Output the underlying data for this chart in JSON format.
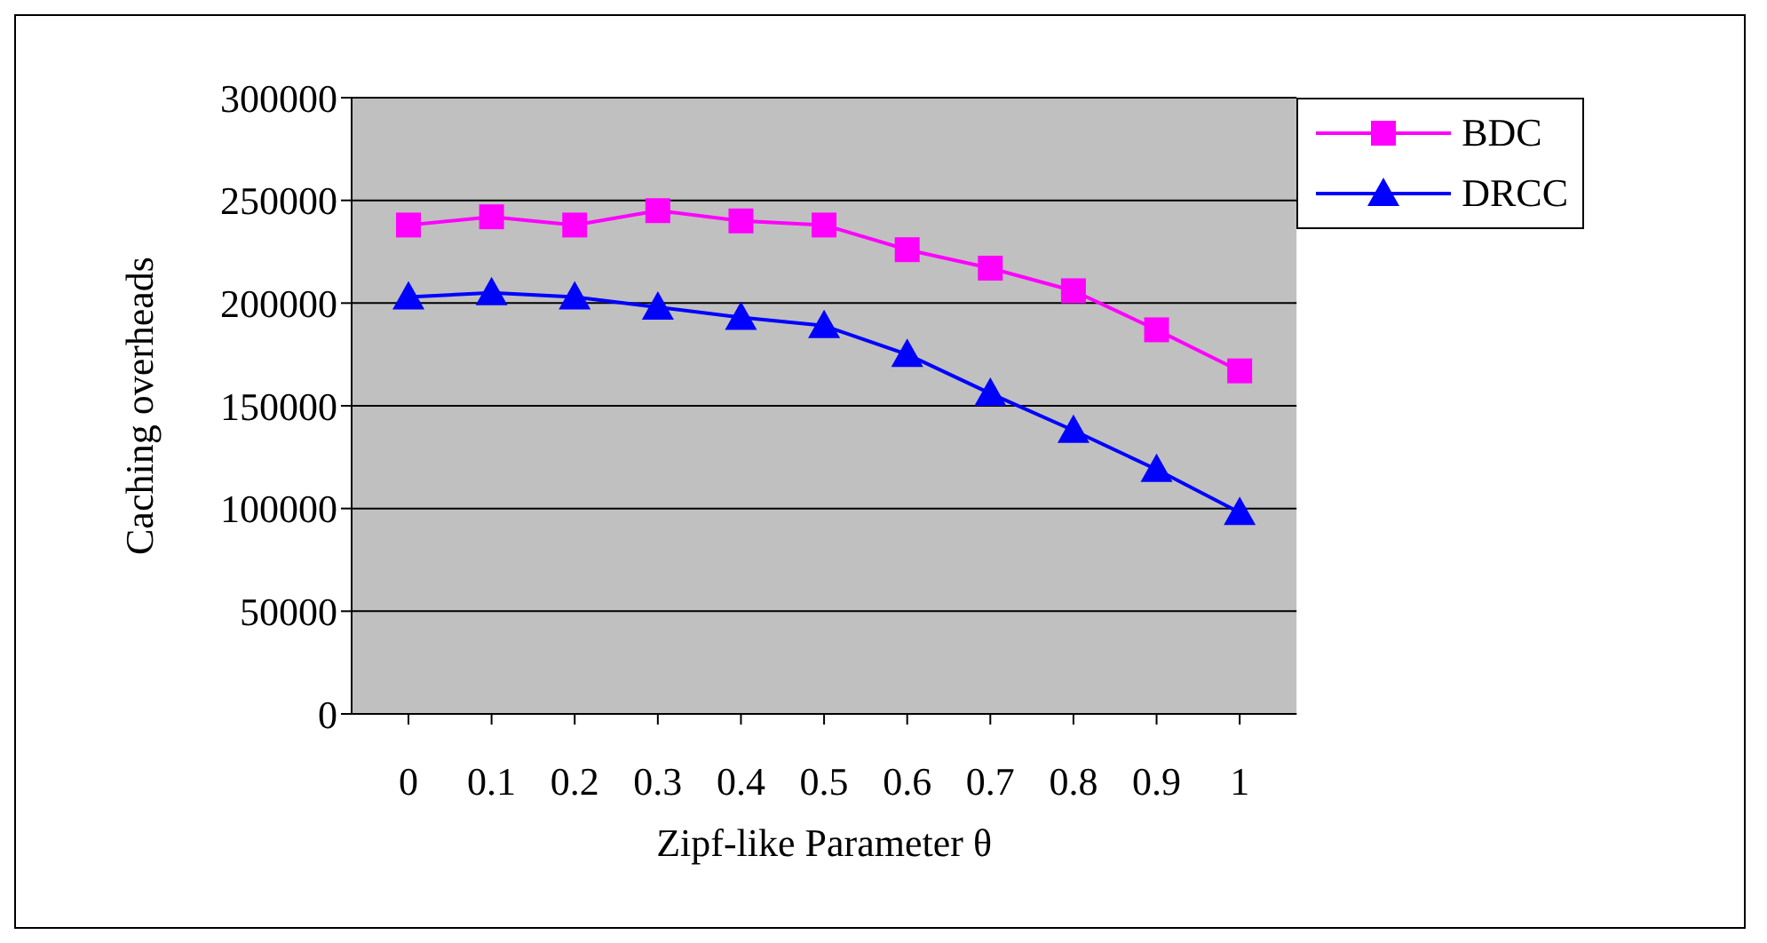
{
  "chart_data": {
    "type": "line",
    "xlabel": "Zipf-like Parameter θ",
    "ylabel": "Caching overheads",
    "categories": [
      "0",
      "0.1",
      "0.2",
      "0.3",
      "0.4",
      "0.5",
      "0.6",
      "0.7",
      "0.8",
      "0.9",
      "1"
    ],
    "series": [
      {
        "name": "BDC",
        "color": "#ff00ff",
        "marker": "square",
        "values": [
          238000,
          242000,
          238000,
          245000,
          240000,
          238000,
          226000,
          217000,
          206000,
          187000,
          167000
        ]
      },
      {
        "name": "DRCC",
        "color": "#0000ff",
        "marker": "triangle",
        "values": [
          203000,
          205000,
          203000,
          198000,
          193000,
          189000,
          175000,
          156000,
          138000,
          119000,
          98000
        ]
      }
    ],
    "ylim": [
      0,
      300000
    ],
    "yticks": [
      0,
      50000,
      100000,
      150000,
      200000,
      250000,
      300000
    ],
    "grid": "y",
    "legend": "top right",
    "line_style": "solid"
  }
}
